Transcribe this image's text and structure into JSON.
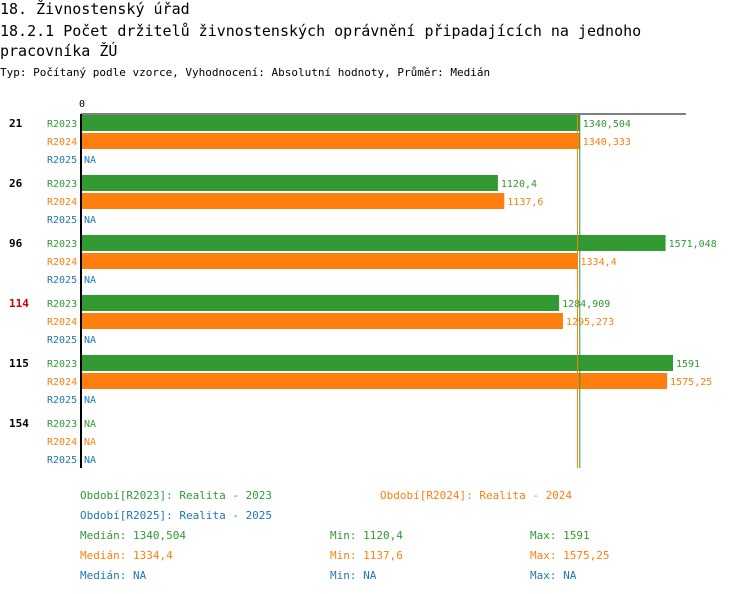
{
  "header": {
    "title": "18. Živnostenský úřad",
    "subtitle": "18.2.1 Počet držitelů živnostenských oprávnění připadajících na jednoho pracovníka ŽÚ",
    "meta": "Typ: Počítaný podle vzorce, Vyhodnocení: Absolutní hodnoty, Průměr: Medián"
  },
  "chart_data": {
    "type": "bar",
    "orientation": "horizontal",
    "axis_zero_label": "0",
    "xlim": [
      0,
      1640
    ],
    "categories": [
      "21",
      "26",
      "96",
      "114",
      "115",
      "154"
    ],
    "highlight_category": "114",
    "series": [
      {
        "name": "R2023",
        "color": "#339933",
        "values": [
          1340.504,
          1120.4,
          1571.048,
          1284.909,
          1591,
          null
        ],
        "labels": [
          "1340,504",
          "1120,4",
          "1571,048",
          "1284,909",
          "1591",
          "NA"
        ]
      },
      {
        "name": "R2024",
        "color": "#ff7f0e",
        "values": [
          1340.333,
          1137.6,
          1334.4,
          1295.273,
          1575.25,
          null
        ],
        "labels": [
          "1340,333",
          "1137,6",
          "1334,4",
          "1295,273",
          "1575,25",
          "NA"
        ]
      },
      {
        "name": "R2025",
        "color": "#1f77b4",
        "values": [
          null,
          null,
          null,
          null,
          null,
          null
        ],
        "labels": [
          "NA",
          "NA",
          "NA",
          "NA",
          "NA",
          "NA"
        ]
      }
    ],
    "reference_lines": [
      {
        "series": "R2023",
        "value": 1340.504,
        "color": "#339933"
      },
      {
        "series": "R2024",
        "value": 1334.4,
        "color": "#ff7f0e"
      }
    ]
  },
  "legend": {
    "periods": [
      {
        "text": "Období[R2023]: Realita - 2023",
        "color": "#339933"
      },
      {
        "text": "Období[R2024]: Realita - 2024",
        "color": "#ff7f0e"
      },
      {
        "text": "Období[R2025]: Realita - 2025",
        "color": "#1f77b4"
      }
    ],
    "stats": [
      {
        "median": "Medián: 1340,504",
        "min": "Min: 1120,4",
        "max": "Max: 1591",
        "color": "#339933"
      },
      {
        "median": "Medián: 1334,4",
        "min": "Min: 1137,6",
        "max": "Max: 1575,25",
        "color": "#ff7f0e"
      },
      {
        "median": "Medián: NA",
        "min": "Min: NA",
        "max": "Max: NA",
        "color": "#1f77b4"
      }
    ]
  },
  "colors": {
    "highlight": "#cc0000",
    "text": "#000000"
  }
}
